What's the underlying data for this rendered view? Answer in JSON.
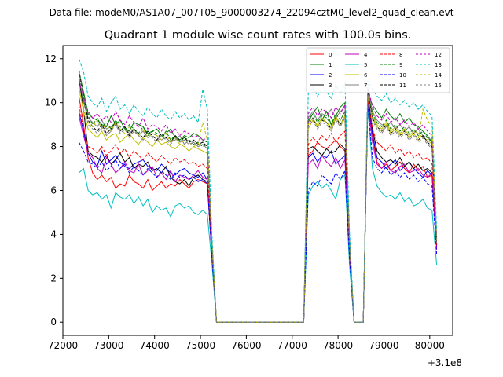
{
  "figure": {
    "suptitle": "Data file: modeM0/AS1A07_007T05_9000003274_22094cztM0_level2_quad_clean.evt",
    "offset_label": "+3.1e8"
  },
  "chart_data": {
    "type": "line",
    "title": "Quadrant 1 module wise count rates with 100.0s bins.",
    "xlabel": "",
    "ylabel": "",
    "x_offset": 310000000,
    "xlim": [
      310072000,
      310080500
    ],
    "ylim": [
      -0.6,
      12.6
    ],
    "xticks": [
      310072000,
      310073000,
      310074000,
      310075000,
      310076000,
      310077000,
      310078000,
      310079000,
      310080000
    ],
    "xtick_labels": [
      "72000",
      "73000",
      "74000",
      "75000",
      "76000",
      "77000",
      "78000",
      "79000",
      "80000"
    ],
    "yticks": [
      0,
      2,
      4,
      6,
      8,
      10,
      12
    ],
    "ytick_labels": [
      "0",
      "2",
      "4",
      "6",
      "8",
      "10",
      "12"
    ],
    "grid": false,
    "legend": {
      "placement": "upper-right",
      "columns": 4
    },
    "segment_x": [
      [
        310072350,
        310072450,
        310072550,
        310072650,
        310072750,
        310072850,
        310072950,
        310073050,
        310073150,
        310073250,
        310073350,
        310073450,
        310073550,
        310073650,
        310073750,
        310073850,
        310073950,
        310074050,
        310074150,
        310074250,
        310074350,
        310074450,
        310074550,
        310074650,
        310074750,
        310074850,
        310074950,
        310075050,
        310075150,
        310075250,
        310075350,
        310075450
      ],
      [
        310075450,
        310077250
      ],
      [
        310077250,
        310077350,
        310077450,
        310077550,
        310077650,
        310077750,
        310077850,
        310077950,
        310078050,
        310078150,
        310078250,
        310078350
      ],
      [
        310078350,
        310078550
      ],
      [
        310078550,
        310078650,
        310078750,
        310078850,
        310078950,
        310079050,
        310079150,
        310079250,
        310079350,
        310079450,
        310079550,
        310079650,
        310079750,
        310079850,
        310079950,
        310080050,
        310080150
      ]
    ],
    "series": [
      {
        "name": "0",
        "color": "#ff0000",
        "dash": "solid",
        "base": [
          10.3,
          9.0,
          7.5,
          6.8,
          6.5,
          6.7,
          6.4,
          6.6,
          6.1,
          6.3,
          6.2,
          6.7,
          6.4,
          6.3,
          6.1,
          6.5,
          6.0,
          6.2,
          6.4,
          6.1,
          6.3,
          6.2,
          6.5,
          6.3,
          6.1,
          6.4,
          6.5,
          6.4,
          6.3,
          3.0,
          0,
          0
        ],
        "b2": [
          0,
          7.6,
          7.8,
          8.2,
          8.0,
          7.9,
          8.1,
          8.3,
          8.0,
          7.8,
          3.0,
          0
        ],
        "b3": [
          0,
          10.2,
          8.5,
          7.3,
          7.0,
          7.2,
          6.9,
          7.1,
          7.3,
          7.0,
          6.8,
          7.2,
          6.9,
          7.1,
          6.6,
          6.7,
          3.5
        ]
      },
      {
        "name": "1",
        "color": "#008000",
        "dash": "solid",
        "base": [
          11.4,
          10.5,
          9.5,
          9.3,
          9.2,
          9.0,
          8.9,
          9.4,
          9.0,
          9.2,
          8.8,
          8.7,
          9.1,
          9.0,
          8.9,
          8.6,
          8.7,
          8.8,
          8.5,
          8.6,
          8.8,
          8.4,
          8.3,
          8.5,
          8.4,
          8.6,
          8.5,
          8.3,
          8.2,
          3.7,
          0,
          0
        ],
        "b2": [
          0,
          9.1,
          9.5,
          9.8,
          9.2,
          9.6,
          9.0,
          9.4,
          9.8,
          10.0,
          3.8,
          0
        ],
        "b3": [
          0,
          10.4,
          9.9,
          9.6,
          9.3,
          9.7,
          9.4,
          9.2,
          9.5,
          9.1,
          9.3,
          9.0,
          8.9,
          8.7,
          8.5,
          8.2,
          3.8
        ]
      },
      {
        "name": "2",
        "color": "#0000ff",
        "dash": "solid",
        "base": [
          9.6,
          8.7,
          7.7,
          7.3,
          7.1,
          7.8,
          7.2,
          7.4,
          7.6,
          7.3,
          7.1,
          7.0,
          7.2,
          7.3,
          7.4,
          7.1,
          7.0,
          6.9,
          7.2,
          7.0,
          6.8,
          6.7,
          6.9,
          7.0,
          6.8,
          6.7,
          6.6,
          6.8,
          6.5,
          3.1,
          0,
          0
        ],
        "b2": [
          0,
          7.5,
          7.7,
          7.3,
          7.6,
          7.5,
          7.8,
          7.2,
          7.4,
          7.6,
          3.0,
          0
        ],
        "b3": [
          0,
          10.0,
          8.6,
          7.5,
          7.3,
          7.0,
          7.2,
          7.4,
          6.9,
          7.1,
          7.3,
          7.0,
          6.8,
          6.6,
          6.9,
          6.7,
          3.4
        ]
      },
      {
        "name": "3",
        "color": "#000000",
        "dash": "solid",
        "base": [
          11.1,
          9.7,
          7.8,
          7.6,
          7.5,
          7.3,
          7.6,
          7.2,
          7.4,
          7.7,
          7.3,
          7.5,
          7.0,
          7.2,
          7.1,
          7.3,
          6.9,
          7.0,
          6.8,
          7.1,
          6.6,
          6.4,
          6.3,
          6.5,
          6.2,
          6.6,
          6.7,
          6.5,
          6.4,
          3.1,
          0,
          0
        ],
        "b2": [
          0,
          7.9,
          8.0,
          7.8,
          7.6,
          7.9,
          7.7,
          7.8,
          8.1,
          7.9,
          3.1,
          0
        ],
        "b3": [
          0,
          10.3,
          8.8,
          7.8,
          7.5,
          7.3,
          7.4,
          7.2,
          7.5,
          7.1,
          7.3,
          7.0,
          7.2,
          6.9,
          7.0,
          6.8,
          3.5
        ]
      },
      {
        "name": "4",
        "color": "#bf00bf",
        "dash": "solid",
        "base": [
          9.4,
          8.5,
          7.7,
          7.5,
          7.0,
          6.8,
          7.5,
          7.2,
          6.8,
          7.0,
          7.3,
          6.9,
          6.8,
          7.2,
          6.7,
          6.9,
          7.1,
          6.6,
          6.8,
          6.5,
          6.9,
          6.4,
          6.7,
          6.6,
          6.5,
          6.7,
          6.9,
          6.6,
          6.5,
          3.1,
          0,
          0
        ],
        "b2": [
          0,
          7.2,
          7.4,
          7.0,
          7.6,
          7.3,
          7.1,
          7.5,
          7.0,
          7.4,
          3.0,
          0
        ],
        "b3": [
          0,
          10.0,
          8.2,
          7.2,
          7.0,
          7.3,
          6.9,
          6.8,
          7.1,
          7.2,
          6.8,
          6.9,
          7.0,
          6.7,
          6.6,
          6.8,
          3.3
        ]
      },
      {
        "name": "5",
        "color": "#00bfbf",
        "dash": "solid",
        "base": [
          6.8,
          7.0,
          6.0,
          5.8,
          5.9,
          5.6,
          5.8,
          5.2,
          5.9,
          5.7,
          5.6,
          5.8,
          5.4,
          5.7,
          5.3,
          5.6,
          5.0,
          5.3,
          5.1,
          5.2,
          4.8,
          5.3,
          5.4,
          5.2,
          5.3,
          5.0,
          4.9,
          5.1,
          4.9,
          2.7,
          0,
          0
        ],
        "b2": [
          0,
          5.8,
          6.2,
          6.4,
          6.1,
          6.3,
          6.0,
          5.6,
          6.5,
          6.7,
          2.6,
          0
        ],
        "b3": [
          0,
          9.8,
          7.0,
          6.2,
          5.9,
          5.7,
          5.8,
          5.6,
          5.9,
          5.5,
          5.7,
          5.3,
          5.4,
          5.6,
          5.2,
          5.1,
          2.6
        ]
      },
      {
        "name": "6",
        "color": "#bfbf00",
        "dash": "solid",
        "base": [
          10.7,
          9.6,
          8.8,
          8.6,
          8.4,
          8.7,
          8.3,
          8.5,
          8.6,
          8.2,
          8.4,
          8.6,
          8.3,
          8.1,
          8.4,
          8.2,
          8.0,
          8.3,
          8.1,
          8.2,
          8.0,
          7.9,
          8.1,
          8.0,
          7.8,
          8.0,
          7.9,
          7.8,
          7.7,
          3.4,
          0,
          0
        ],
        "b2": [
          0,
          8.8,
          9.2,
          9.0,
          9.3,
          9.1,
          8.9,
          9.4,
          9.0,
          9.3,
          3.6,
          0
        ],
        "b3": [
          0,
          10.5,
          9.4,
          9.0,
          8.8,
          9.1,
          8.7,
          8.9,
          8.6,
          8.8,
          8.5,
          8.7,
          8.6,
          8.4,
          8.3,
          8.1,
          3.8
        ]
      },
      {
        "name": "7",
        "color": "#808080",
        "dash": "solid",
        "base": [
          11.2,
          10.0,
          9.3,
          9.1,
          8.9,
          9.2,
          8.8,
          8.9,
          9.1,
          8.7,
          8.9,
          8.6,
          8.8,
          8.5,
          8.7,
          8.4,
          8.6,
          8.5,
          8.3,
          8.4,
          8.2,
          8.3,
          8.5,
          8.1,
          8.3,
          8.2,
          8.0,
          8.1,
          7.9,
          3.6,
          0,
          0
        ],
        "b2": [
          0,
          9.3,
          9.6,
          9.2,
          9.5,
          9.4,
          9.7,
          9.3,
          9.6,
          9.8,
          3.7,
          0
        ],
        "b3": [
          0,
          10.6,
          9.6,
          9.2,
          9.0,
          8.9,
          9.1,
          8.8,
          9.0,
          8.7,
          8.9,
          8.6,
          8.8,
          8.5,
          8.4,
          8.3,
          3.9
        ]
      },
      {
        "name": "8",
        "color": "#ff0000",
        "dash": "dashed",
        "base": [
          9.9,
          8.8,
          8.0,
          7.9,
          7.7,
          8.0,
          7.6,
          7.8,
          8.1,
          7.7,
          7.9,
          7.5,
          7.8,
          7.6,
          7.4,
          7.7,
          7.5,
          7.3,
          7.6,
          7.4,
          7.2,
          7.5,
          7.3,
          7.4,
          7.2,
          7.3,
          7.1,
          7.2,
          7.0,
          3.2,
          0,
          0
        ],
        "b2": [
          0,
          8.1,
          8.4,
          8.2,
          8.5,
          8.3,
          8.6,
          8.2,
          8.5,
          8.7,
          3.3,
          0
        ],
        "b3": [
          0,
          10.1,
          8.8,
          8.2,
          8.0,
          7.8,
          8.1,
          7.7,
          7.9,
          7.6,
          7.8,
          7.5,
          7.7,
          7.4,
          7.5,
          7.2,
          3.5
        ]
      },
      {
        "name": "9",
        "color": "#008000",
        "dash": "dashed",
        "base": [
          11.0,
          10.1,
          9.4,
          9.0,
          9.3,
          8.9,
          9.1,
          8.8,
          9.2,
          8.9,
          8.7,
          9.0,
          8.8,
          8.6,
          8.9,
          8.5,
          8.7,
          8.6,
          8.4,
          8.7,
          8.3,
          8.5,
          8.2,
          8.4,
          8.3,
          8.1,
          8.2,
          8.0,
          8.1,
          3.6,
          0,
          0
        ],
        "b2": [
          0,
          9.2,
          9.5,
          9.1,
          9.4,
          9.3,
          9.0,
          9.5,
          9.2,
          9.6,
          3.7,
          0
        ],
        "b3": [
          0,
          10.4,
          9.5,
          9.1,
          8.9,
          9.2,
          8.8,
          9.0,
          8.7,
          8.9,
          8.6,
          8.8,
          8.5,
          8.7,
          8.4,
          8.2,
          3.8
        ]
      },
      {
        "name": "10",
        "color": "#0000ff",
        "dash": "dashed",
        "base": [
          8.2,
          7.8,
          7.3,
          7.2,
          7.0,
          7.3,
          6.9,
          7.1,
          7.4,
          7.0,
          7.2,
          6.8,
          7.1,
          6.9,
          6.7,
          7.0,
          6.8,
          6.6,
          6.9,
          6.7,
          6.5,
          6.8,
          6.6,
          6.7,
          6.5,
          6.6,
          6.4,
          6.5,
          6.3,
          3.0,
          0,
          0
        ],
        "b2": [
          0,
          6.0,
          6.4,
          6.2,
          6.7,
          6.5,
          6.3,
          6.8,
          6.5,
          6.9,
          2.9,
          0
        ],
        "b3": [
          0,
          9.9,
          7.5,
          7.0,
          6.8,
          7.1,
          6.7,
          6.9,
          6.6,
          6.8,
          6.5,
          6.7,
          6.4,
          6.6,
          6.3,
          6.2,
          3.1
        ]
      },
      {
        "name": "11",
        "color": "#000000",
        "dash": "dashed",
        "base": [
          11.5,
          10.3,
          9.2,
          8.9,
          8.7,
          9.0,
          8.6,
          8.8,
          9.1,
          8.7,
          8.9,
          8.5,
          8.8,
          8.6,
          8.4,
          8.7,
          8.5,
          8.3,
          8.6,
          8.4,
          8.2,
          8.5,
          8.3,
          8.4,
          8.2,
          8.3,
          8.1,
          8.2,
          8.0,
          3.5,
          0,
          0
        ],
        "b2": [
          0,
          9.0,
          9.3,
          8.9,
          9.2,
          9.1,
          8.8,
          9.3,
          9.0,
          9.4,
          3.6,
          0
        ],
        "b3": [
          0,
          10.5,
          9.3,
          8.9,
          8.7,
          9.0,
          8.6,
          8.8,
          8.5,
          8.7,
          8.4,
          8.6,
          8.3,
          8.5,
          8.2,
          8.0,
          3.7
        ]
      },
      {
        "name": "12",
        "color": "#bf00bf",
        "dash": "dashed",
        "base": [
          11.0,
          10.2,
          9.6,
          9.3,
          9.5,
          9.2,
          9.4,
          9.1,
          9.6,
          9.2,
          9.0,
          9.4,
          9.1,
          8.9,
          9.3,
          8.8,
          9.0,
          8.9,
          8.7,
          9.0,
          8.6,
          8.8,
          8.5,
          8.7,
          8.6,
          8.4,
          8.5,
          8.3,
          8.4,
          3.7,
          0,
          0
        ],
        "b2": [
          0,
          9.5,
          9.8,
          9.4,
          9.7,
          9.6,
          9.3,
          9.8,
          9.5,
          9.9,
          3.8,
          0
        ],
        "b3": [
          0,
          10.7,
          9.8,
          9.4,
          9.2,
          9.5,
          9.1,
          9.3,
          9.0,
          9.2,
          8.9,
          9.1,
          8.8,
          9.0,
          8.7,
          8.5,
          3.9
        ]
      },
      {
        "name": "13",
        "color": "#00bfbf",
        "dash": "dashed",
        "base": [
          12.0,
          11.4,
          10.3,
          10.0,
          9.8,
          10.2,
          9.6,
          10.0,
          10.3,
          9.7,
          9.9,
          9.5,
          9.9,
          9.6,
          9.4,
          9.8,
          9.5,
          9.3,
          9.7,
          9.4,
          9.2,
          9.6,
          9.3,
          9.5,
          9.2,
          9.4,
          9.1,
          10.6,
          9.7,
          4.0,
          0,
          0
        ],
        "b2": [
          0,
          10.4,
          10.7,
          10.3,
          10.6,
          10.5,
          10.2,
          10.8,
          10.4,
          10.9,
          4.1,
          0
        ],
        "b3": [
          0,
          11.0,
          10.6,
          10.3,
          10.1,
          10.4,
          10.0,
          10.2,
          9.9,
          10.1,
          9.8,
          10.0,
          9.7,
          9.9,
          9.6,
          9.4,
          4.2
        ]
      },
      {
        "name": "14",
        "color": "#bfbf00",
        "dash": "dashed",
        "base": [
          10.6,
          9.7,
          9.1,
          8.9,
          9.2,
          8.8,
          9.0,
          8.7,
          9.1,
          8.8,
          8.6,
          8.9,
          8.7,
          8.5,
          8.8,
          8.4,
          8.6,
          8.5,
          8.3,
          8.6,
          8.2,
          8.4,
          8.1,
          8.3,
          8.2,
          8.0,
          8.1,
          9.1,
          8.3,
          3.6,
          0,
          0
        ],
        "b2": [
          0,
          9.0,
          9.3,
          8.9,
          9.2,
          9.1,
          8.8,
          9.3,
          9.0,
          9.4,
          3.6,
          0
        ],
        "b3": [
          0,
          10.3,
          9.3,
          8.9,
          8.7,
          9.0,
          8.6,
          8.8,
          8.5,
          8.7,
          8.4,
          8.6,
          8.3,
          9.7,
          9.2,
          8.9,
          3.7
        ]
      },
      {
        "name": "15",
        "color": "#808080",
        "dash": "dashed",
        "base": [
          11.3,
          10.1,
          9.0,
          8.8,
          8.6,
          8.9,
          8.5,
          8.7,
          9.0,
          8.6,
          8.8,
          8.4,
          8.7,
          8.5,
          8.3,
          8.6,
          8.4,
          8.2,
          8.5,
          8.3,
          8.1,
          8.4,
          8.2,
          8.3,
          8.1,
          8.2,
          8.0,
          8.1,
          7.9,
          3.5,
          0,
          0
        ],
        "b2": [
          0,
          8.9,
          9.2,
          8.8,
          9.1,
          9.0,
          8.7,
          9.2,
          8.9,
          9.3,
          3.5,
          0
        ],
        "b3": [
          0,
          10.4,
          9.2,
          8.8,
          8.6,
          8.9,
          8.5,
          8.7,
          8.4,
          8.6,
          8.3,
          8.5,
          8.2,
          8.4,
          8.1,
          7.9,
          3.6
        ]
      }
    ]
  }
}
